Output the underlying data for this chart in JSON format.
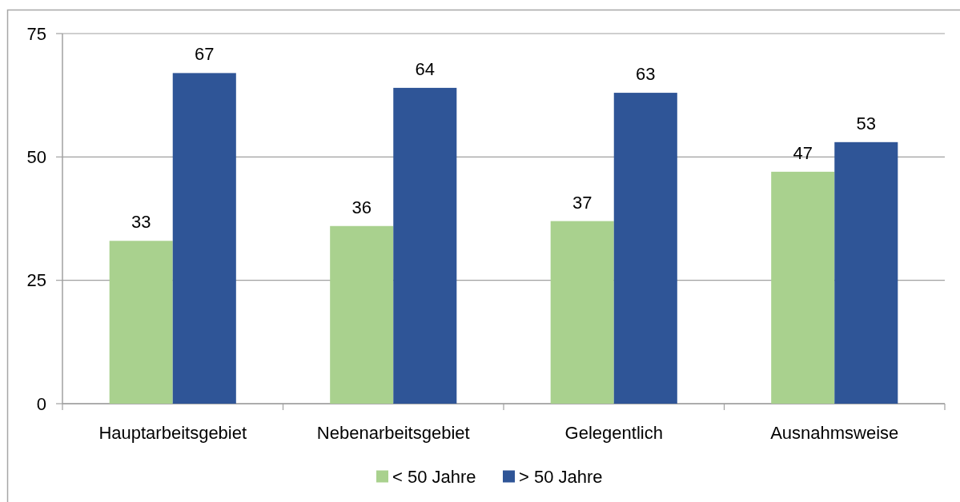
{
  "chart_data": {
    "type": "bar",
    "categories": [
      "Hauptarbeitsgebiet",
      "Nebenarbeitsgebiet",
      "Gelegentlich",
      "Ausnahmsweise"
    ],
    "series": [
      {
        "name": "< 50 Jahre",
        "color": "#a9d18e",
        "values": [
          33,
          36,
          37,
          47
        ]
      },
      {
        "name": "> 50 Jahre",
        "color": "#2f5597",
        "values": [
          67,
          64,
          63,
          53
        ]
      }
    ],
    "ylim": [
      0,
      75
    ],
    "yticks": [
      0,
      25,
      50,
      75
    ],
    "grid": "y",
    "legend": "bottom",
    "data_labels": true
  }
}
